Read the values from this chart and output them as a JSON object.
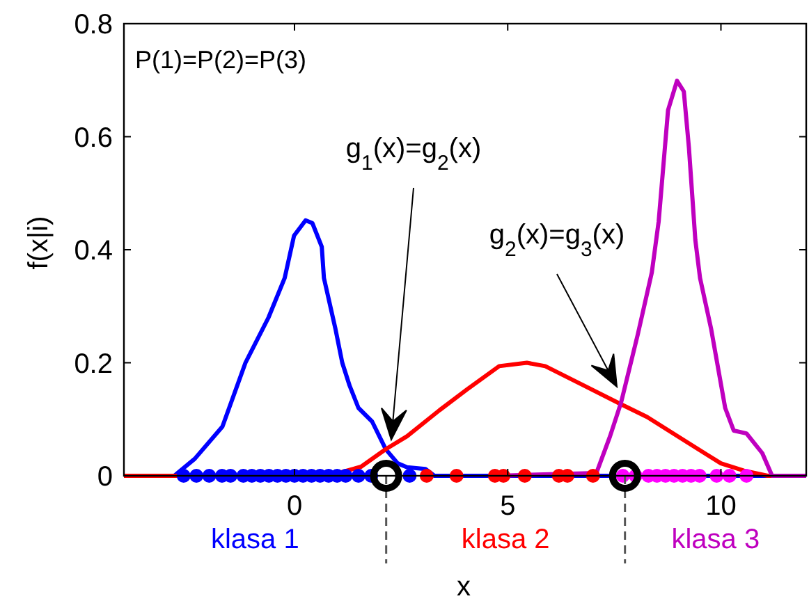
{
  "chart_data": {
    "type": "line",
    "xlabel": "x",
    "ylabel": "f(x|i)",
    "xlim": [
      -4,
      12
    ],
    "ylim": [
      0,
      0.8
    ],
    "xticks": [
      0,
      5,
      10
    ],
    "yticks": [
      0,
      0.2,
      0.4,
      0.6,
      0.8
    ],
    "grid": false,
    "line_style": "solid",
    "annotations": [
      "P(1)=P(2)=P(3)",
      "g$_{1}$(x)=g$_{2}$(x)",
      "g$_{2}$(x)=g$_{3}$(x)"
    ],
    "series": [
      {
        "name": "klasa 1",
        "color": "#0000ff",
        "marker": "none",
        "x": [
          -4,
          -2.82,
          -2.34,
          -1.69,
          -1.15,
          -0.61,
          -0.23,
          -0.01,
          0.26,
          0.42,
          0.64,
          0.69,
          0.96,
          1.12,
          1.29,
          1.5,
          1.82,
          2.14,
          2.42,
          2.64,
          3.07,
          3.28,
          12
        ],
        "values": [
          0,
          0,
          0.03,
          0.087,
          0.2,
          0.28,
          0.35,
          0.425,
          0.452,
          0.447,
          0.405,
          0.35,
          0.26,
          0.2,
          0.16,
          0.12,
          0.096,
          0.047,
          0.022,
          0.015,
          0.012,
          0,
          0
        ]
      },
      {
        "name": "klasa 2",
        "color": "#ff0000",
        "marker": "none",
        "x": [
          -4,
          0.8,
          1.56,
          2.14,
          2.64,
          3.4,
          4.05,
          4.8,
          5.45,
          5.88,
          6.75,
          7.62,
          8.27,
          9.13,
          10.0,
          10.54,
          11.1,
          12
        ],
        "values": [
          0,
          0,
          0.016,
          0.047,
          0.07,
          0.116,
          0.153,
          0.194,
          0.2,
          0.194,
          0.161,
          0.128,
          0.104,
          0.063,
          0.022,
          0.009,
          0,
          0
        ]
      },
      {
        "name": "klasa 3",
        "color": "#bf00bf",
        "marker": "none",
        "x": [
          4.74,
          7.08,
          7.4,
          7.66,
          8.05,
          8.38,
          8.54,
          8.76,
          8.97,
          9.13,
          9.25,
          9.4,
          9.51,
          9.77,
          10.1,
          10.3,
          10.6,
          10.97,
          11.2,
          12
        ],
        "values": [
          0,
          0.005,
          0.07,
          0.13,
          0.25,
          0.36,
          0.45,
          0.647,
          0.699,
          0.68,
          0.58,
          0.417,
          0.35,
          0.26,
          0.12,
          0.08,
          0.075,
          0.04,
          0,
          0
        ]
      },
      {
        "type": "scatter",
        "color": "#0000ff",
        "marker": "circle",
        "x": [
          -2.6,
          -2.3,
          -2.0,
          -1.7,
          -1.5,
          -1.2,
          -1.0,
          -0.8,
          -0.6,
          -0.4,
          -0.2,
          0,
          0.2,
          0.4,
          0.6,
          0.8,
          1.0,
          1.2,
          1.5,
          1.8,
          2.7
        ],
        "values": [
          0,
          0,
          0,
          0,
          0,
          0,
          0,
          0,
          0,
          0,
          0,
          0,
          0,
          0,
          0,
          0,
          0,
          0,
          0,
          0,
          0
        ]
      },
      {
        "type": "scatter",
        "color": "#ff0000",
        "marker": "circle",
        "x": [
          3.1,
          3.8,
          4.7,
          4.9,
          5.4,
          6.2,
          6.4,
          7.0
        ],
        "values": [
          0,
          0,
          0,
          0,
          0,
          0,
          0,
          0
        ]
      },
      {
        "type": "scatter",
        "color": "#ff00ff",
        "marker": "circle",
        "x": [
          7.7,
          8.0,
          8.3,
          8.5,
          8.7,
          8.9,
          9.1,
          9.3,
          9.5,
          9.9,
          10.2,
          10.6
        ],
        "values": [
          0,
          0,
          0,
          0,
          0,
          0,
          0,
          0,
          0,
          0,
          0,
          0
        ]
      },
      {
        "type": "scatter",
        "color": "#000000",
        "marker": "circle",
        "line_style": "dashed",
        "x": [
          2.15,
          7.75
        ],
        "values": [
          0,
          0
        ]
      }
    ]
  }
}
